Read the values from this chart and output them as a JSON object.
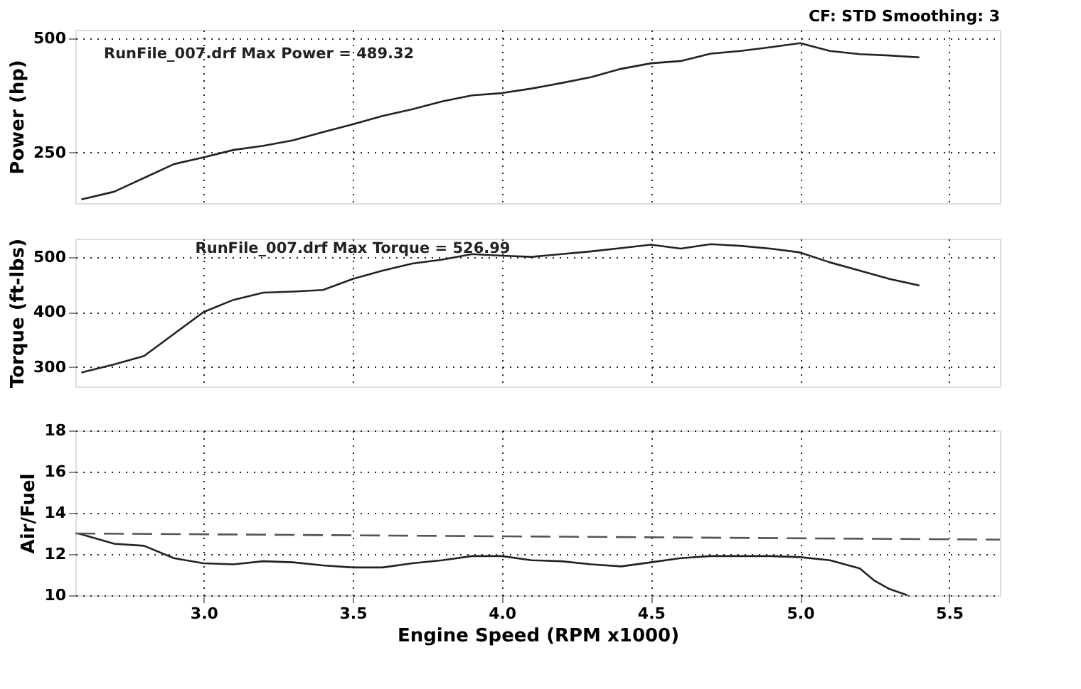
{
  "chart_data": [
    {
      "type": "line",
      "ylabel": "Power (hp)",
      "annotations": [
        "CF: STD  Smoothing: 3",
        "RunFile_007.drf Max Power = 489.32"
      ],
      "xlim": [
        2.57,
        5.67
      ],
      "xticks": [
        3,
        3.5,
        4,
        4.5,
        5,
        5.5
      ],
      "ylim": [
        140,
        518
      ],
      "yticks": [
        250,
        500
      ],
      "grid": true,
      "tick_labels": "y",
      "marker": "none",
      "series": [
        {
          "color": "#222222",
          "line_style": "solid",
          "x": [
            2.59,
            2.7,
            2.8,
            2.9,
            3.0,
            3.1,
            3.2,
            3.3,
            3.4,
            3.5,
            3.6,
            3.7,
            3.8,
            3.9,
            4.0,
            4.1,
            4.2,
            4.3,
            4.4,
            4.5,
            4.6,
            4.7,
            4.8,
            4.9,
            5.0,
            5.1,
            5.2,
            5.3,
            5.4
          ],
          "values": [
            148,
            165,
            195,
            225,
            240,
            256,
            265,
            277,
            295,
            312,
            330,
            345,
            362,
            375,
            380,
            390,
            402,
            415,
            433,
            445,
            450,
            466,
            472,
            480,
            489,
            472,
            465,
            462,
            458
          ]
        }
      ]
    },
    {
      "type": "line",
      "ylabel": "Torque (ft-lbs)",
      "annotations": [
        "RunFile_007.drf Max Torque = 526.99"
      ],
      "xlim": [
        2.57,
        5.67
      ],
      "xticks": [
        3,
        3.5,
        4,
        4.5,
        5,
        5.5
      ],
      "ylim": [
        265,
        533
      ],
      "yticks": [
        300,
        400,
        500
      ],
      "grid": true,
      "tick_labels": "y",
      "marker": "none",
      "series": [
        {
          "color": "#222222",
          "line_style": "solid",
          "x": [
            2.59,
            2.7,
            2.8,
            2.9,
            3.0,
            3.1,
            3.2,
            3.3,
            3.4,
            3.5,
            3.6,
            3.7,
            3.8,
            3.9,
            4.0,
            4.1,
            4.2,
            4.3,
            4.4,
            4.5,
            4.6,
            4.7,
            4.8,
            4.9,
            5.0,
            5.1,
            5.2,
            5.3,
            5.4
          ],
          "values": [
            290,
            305,
            320,
            360,
            400,
            422,
            435,
            437,
            440,
            460,
            475,
            488,
            495,
            505,
            502,
            500,
            505,
            510,
            516,
            522,
            515,
            523,
            520,
            515,
            508,
            490,
            475,
            460,
            448
          ]
        }
      ]
    },
    {
      "type": "line",
      "xlabel": "Engine Speed (RPM x1000)",
      "ylabel": "Air/Fuel",
      "xlim": [
        2.57,
        5.67
      ],
      "xticks": [
        {
          "value": 3,
          "label": "3.0"
        },
        3.5,
        {
          "value": 4,
          "label": "4.0"
        },
        4.5,
        {
          "value": 5,
          "label": "5.0"
        },
        5.5
      ],
      "ylim": [
        10,
        18
      ],
      "yticks": [
        10,
        12,
        14,
        16,
        18
      ],
      "grid": true,
      "marker": "none",
      "series": [
        {
          "color": "#222222",
          "line_style": "solid",
          "x": [
            2.58,
            2.7,
            2.8,
            2.9,
            3.0,
            3.1,
            3.2,
            3.3,
            3.4,
            3.5,
            3.6,
            3.7,
            3.8,
            3.9,
            4.0,
            4.1,
            4.2,
            4.3,
            4.4,
            4.5,
            4.6,
            4.7,
            4.8,
            4.9,
            5.0,
            5.1,
            5.2,
            5.25,
            5.3,
            5.36
          ],
          "values": [
            13.0,
            12.5,
            12.4,
            11.8,
            11.55,
            11.5,
            11.65,
            11.6,
            11.45,
            11.35,
            11.35,
            11.55,
            11.7,
            11.9,
            11.9,
            11.7,
            11.65,
            11.5,
            11.4,
            11.6,
            11.8,
            11.9,
            11.9,
            11.9,
            11.85,
            11.7,
            11.3,
            10.7,
            10.3,
            10.0
          ]
        },
        {
          "color": "#555555",
          "line_style": "dashed",
          "x": [
            2.57,
            5.67
          ],
          "values": [
            13.0,
            12.7
          ]
        }
      ]
    }
  ]
}
